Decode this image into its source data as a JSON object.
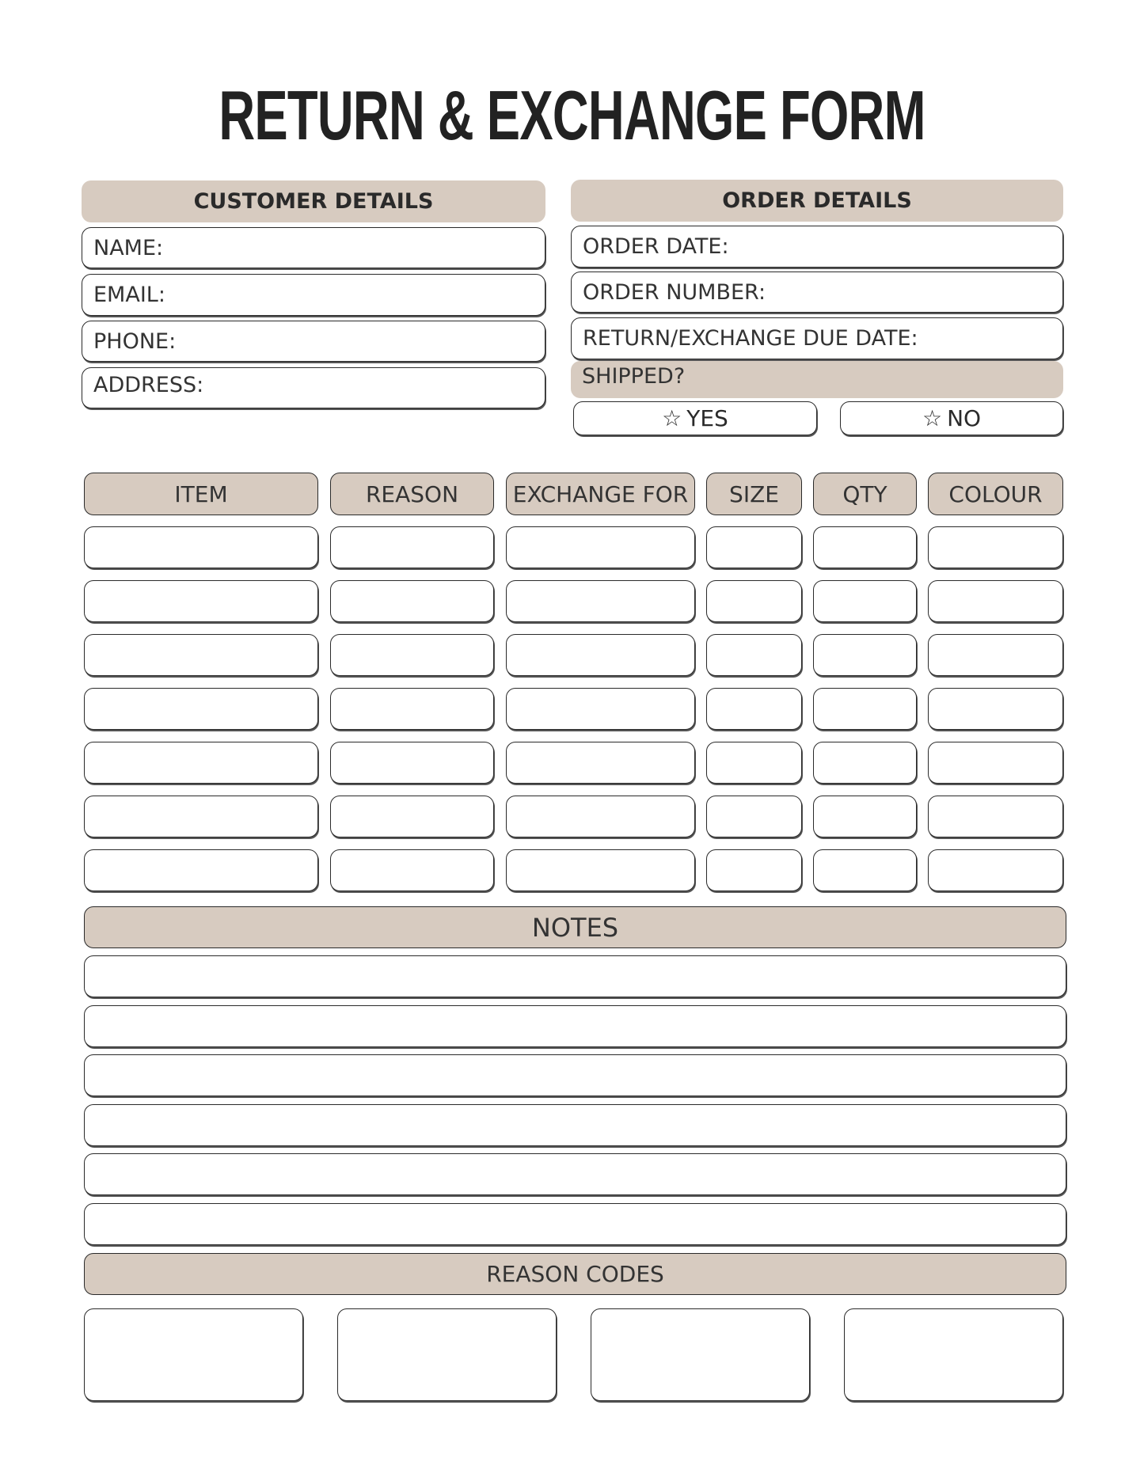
{
  "title": "RETURN & EXCHANGE FORM",
  "customer": {
    "header": "CUSTOMER DETAILS",
    "fields": [
      "NAME:",
      "EMAIL:",
      "PHONE:",
      "ADDRESS:"
    ]
  },
  "order": {
    "header": "ORDER DETAILS",
    "fields": [
      "ORDER DATE:",
      "ORDER NUMBER:",
      "RETURN/EXCHANGE DUE DATE:"
    ],
    "shipped": "SHIPPED?",
    "options": [
      {
        "label": "YES",
        "icon": "star-outline"
      },
      {
        "label": "NO",
        "icon": "star-outline"
      }
    ]
  },
  "table": {
    "columns": [
      "ITEM",
      "REASON",
      "EXCHANGE FOR",
      "SIZE",
      "QTY",
      "COLOUR"
    ],
    "row_count": 7
  },
  "notes": {
    "header": "NOTES",
    "line_count": 6
  },
  "reason_codes": {
    "header": "REASON CODES",
    "box_count": 4
  },
  "colors": {
    "header_fill": "#d7cbc0",
    "border": "#2a2a2a"
  }
}
